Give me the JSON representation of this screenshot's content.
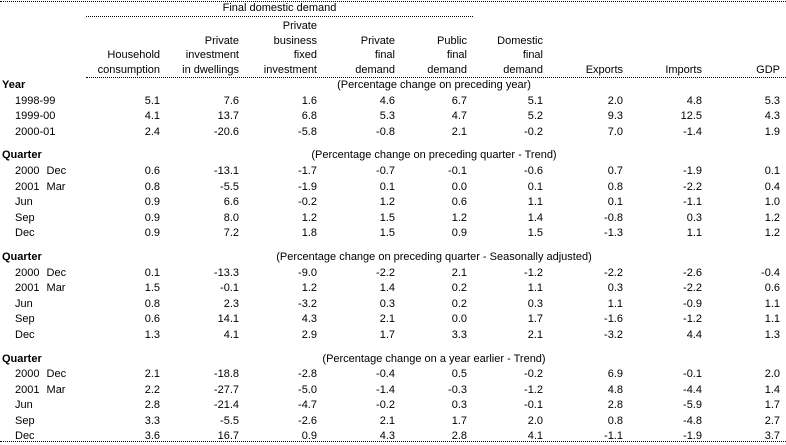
{
  "chart_data": {
    "type": "table",
    "spanner_label": "Final domestic demand",
    "column_headers": [
      [
        "Household",
        "consumption"
      ],
      [
        "Private",
        "investment",
        "in dwellings"
      ],
      [
        "Private",
        "business",
        "fixed",
        "investment"
      ],
      [
        "Private",
        "final",
        "demand"
      ],
      [
        "Public",
        "final",
        "demand"
      ],
      [
        "Domestic",
        "final",
        "demand"
      ],
      [
        "Exports"
      ],
      [
        "Imports"
      ],
      [
        "GDP"
      ]
    ],
    "sections": [
      {
        "label": "Year",
        "caption": "(Percentage change on preceding year)",
        "rows": [
          {
            "label": "1998-99",
            "values": [
              "5.1",
              "7.6",
              "1.6",
              "4.6",
              "6.7",
              "5.1",
              "2.0",
              "4.8",
              "5.3"
            ]
          },
          {
            "label": "1999-00",
            "values": [
              "4.1",
              "13.7",
              "6.8",
              "5.3",
              "4.7",
              "5.2",
              "9.3",
              "12.5",
              "4.3"
            ]
          },
          {
            "label": "2000-01",
            "values": [
              "2.4",
              "-20.6",
              "-5.8",
              "-0.8",
              "2.1",
              "-0.2",
              "7.0",
              "-1.4",
              "1.9"
            ]
          }
        ]
      },
      {
        "label": "Quarter",
        "caption": "(Percentage change on preceding quarter - Trend)",
        "rows": [
          {
            "label": "2000 Dec",
            "values": [
              "0.6",
              "-13.1",
              "-1.7",
              "-0.7",
              "-0.1",
              "-0.6",
              "0.7",
              "-1.9",
              "0.1"
            ]
          },
          {
            "label": "2001 Mar",
            "values": [
              "0.8",
              "-5.5",
              "-1.9",
              "0.1",
              "0.0",
              "0.1",
              "0.8",
              "-2.2",
              "0.4"
            ]
          },
          {
            "label": "Jun",
            "values": [
              "0.9",
              "6.6",
              "-0.2",
              "1.2",
              "0.6",
              "1.1",
              "0.1",
              "-1.1",
              "1.0"
            ]
          },
          {
            "label": "Sep",
            "values": [
              "0.9",
              "8.0",
              "1.2",
              "1.5",
              "1.2",
              "1.4",
              "-0.8",
              "0.3",
              "1.2"
            ]
          },
          {
            "label": "Dec",
            "values": [
              "0.9",
              "7.2",
              "1.8",
              "1.5",
              "0.9",
              "1.5",
              "-1.3",
              "1.1",
              "1.2"
            ]
          }
        ]
      },
      {
        "label": "Quarter",
        "caption": "(Percentage change on preceding quarter - Seasonally adjusted)",
        "rows": [
          {
            "label": "2000 Dec",
            "values": [
              "0.1",
              "-13.3",
              "-9.0",
              "-2.2",
              "2.1",
              "-1.2",
              "-2.2",
              "-2.6",
              "-0.4"
            ]
          },
          {
            "label": "2001 Mar",
            "values": [
              "1.5",
              "-0.1",
              "1.2",
              "1.4",
              "0.2",
              "1.1",
              "0.3",
              "-2.2",
              "0.6"
            ]
          },
          {
            "label": "Jun",
            "values": [
              "0.8",
              "2.3",
              "-3.2",
              "0.3",
              "0.2",
              "0.3",
              "1.1",
              "-0.9",
              "1.1"
            ]
          },
          {
            "label": "Sep",
            "values": [
              "0.6",
              "14.1",
              "4.3",
              "2.1",
              "0.0",
              "1.7",
              "-1.6",
              "-1.2",
              "1.1"
            ]
          },
          {
            "label": "Dec",
            "values": [
              "1.3",
              "4.1",
              "2.9",
              "1.7",
              "3.3",
              "2.1",
              "-3.2",
              "4.4",
              "1.3"
            ]
          }
        ]
      },
      {
        "label": "Quarter",
        "caption": "(Percentage change on a year earlier - Trend)",
        "rows": [
          {
            "label": "2000 Dec",
            "values": [
              "2.1",
              "-18.8",
              "-2.8",
              "-0.4",
              "0.5",
              "-0.2",
              "6.9",
              "-0.1",
              "2.0"
            ]
          },
          {
            "label": "2001 Mar",
            "values": [
              "2.2",
              "-27.7",
              "-5.0",
              "-1.4",
              "-0.3",
              "-1.2",
              "4.8",
              "-4.4",
              "1.4"
            ]
          },
          {
            "label": "Jun",
            "values": [
              "2.8",
              "-21.4",
              "-4.7",
              "-0.2",
              "0.3",
              "-0.1",
              "2.8",
              "-5.9",
              "1.7"
            ]
          },
          {
            "label": "Sep",
            "values": [
              "3.3",
              "-5.5",
              "-2.6",
              "2.1",
              "1.7",
              "2.0",
              "0.8",
              "-4.8",
              "2.7"
            ]
          },
          {
            "label": "Dec",
            "values": [
              "3.6",
              "16.7",
              "0.9",
              "4.3",
              "2.8",
              "4.1",
              "-1.1",
              "-1.9",
              "3.7"
            ]
          }
        ]
      }
    ],
    "colors": {
      "text": "#000000",
      "background": "#ffffff",
      "rules": "#000000"
    }
  }
}
